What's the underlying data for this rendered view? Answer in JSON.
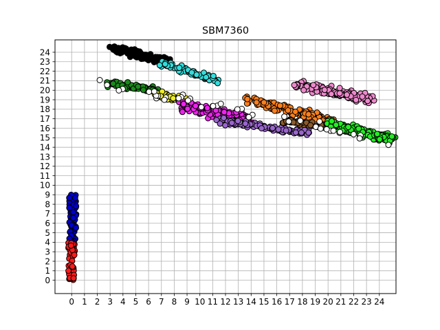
{
  "chart_data": {
    "type": "scatter",
    "title": "SBM7360",
    "xlabel": "",
    "ylabel": "",
    "xlim": [
      -1.3,
      25.3
    ],
    "ylim": [
      -1.4,
      25.3
    ],
    "xticks": [
      0,
      1,
      2,
      3,
      4,
      5,
      6,
      7,
      8,
      9,
      10,
      11,
      12,
      13,
      14,
      15,
      16,
      17,
      18,
      19,
      20,
      21,
      22,
      23,
      24
    ],
    "yticks": [
      0,
      1,
      2,
      3,
      4,
      5,
      6,
      7,
      8,
      9,
      10,
      11,
      12,
      13,
      14,
      15,
      16,
      17,
      18,
      19,
      20,
      21,
      22,
      23,
      24
    ],
    "grid": true,
    "legend": "none",
    "marker": "circle, black edge",
    "clusters": [
      {
        "color": "#0000cc",
        "x_range": [
          -0.2,
          0.35
        ],
        "y_range": [
          4.0,
          9.0
        ],
        "count": 70,
        "shape": "column"
      },
      {
        "color": "#ff1a1a",
        "x_range": [
          -0.25,
          0.25
        ],
        "y_range": [
          0.0,
          4.0
        ],
        "count": 50,
        "shape": "column"
      },
      {
        "color": "#000000",
        "x_from": [
          3.0,
          24.5
        ],
        "x_to": [
          7.6,
          23.0
        ],
        "spread": 0.6,
        "count": 150,
        "shape": "band"
      },
      {
        "color": "#33dddd",
        "x_from": [
          7.0,
          22.8
        ],
        "x_to": [
          11.5,
          21.0
        ],
        "spread": 0.45,
        "count": 70,
        "shape": "band"
      },
      {
        "color": "#1a8a1a",
        "x_from": [
          2.5,
          20.8
        ],
        "x_to": [
          6.8,
          20.0
        ],
        "spread": 0.45,
        "count": 80,
        "shape": "band"
      },
      {
        "color": "#eeee22",
        "x_from": [
          6.5,
          19.7
        ],
        "x_to": [
          9.0,
          18.8
        ],
        "spread": 0.5,
        "count": 60,
        "shape": "band"
      },
      {
        "color": "#ee22ee",
        "x_from": [
          8.5,
          18.5
        ],
        "x_to": [
          14.0,
          16.8
        ],
        "spread": 0.8,
        "count": 180,
        "shape": "band"
      },
      {
        "color": "#9966cc",
        "x_from": [
          11.5,
          16.8
        ],
        "x_to": [
          18.5,
          15.5
        ],
        "spread": 0.45,
        "count": 120,
        "shape": "band"
      },
      {
        "color": "#ff7f1a",
        "x_from": [
          13.5,
          19.0
        ],
        "x_to": [
          20.5,
          16.8
        ],
        "spread": 0.65,
        "count": 150,
        "shape": "band"
      },
      {
        "color": "#8b5a2b",
        "x_from": [
          16.5,
          16.8
        ],
        "x_to": [
          20.0,
          16.2
        ],
        "spread": 0.35,
        "count": 60,
        "shape": "band"
      },
      {
        "color": "#ee88cc",
        "x_from": [
          17.5,
          20.6
        ],
        "x_to": [
          23.5,
          19.0
        ],
        "spread": 0.7,
        "count": 170,
        "shape": "band"
      },
      {
        "color": "#22ee22",
        "x_from": [
          20.0,
          16.5
        ],
        "x_to": [
          25.0,
          14.8
        ],
        "spread": 0.75,
        "count": 170,
        "shape": "band"
      },
      {
        "color": "#ffffff",
        "x_from": [
          2.0,
          20.8
        ],
        "x_to": [
          25.0,
          14.5
        ],
        "spread": 0.9,
        "count": 40,
        "shape": "band"
      }
    ]
  }
}
